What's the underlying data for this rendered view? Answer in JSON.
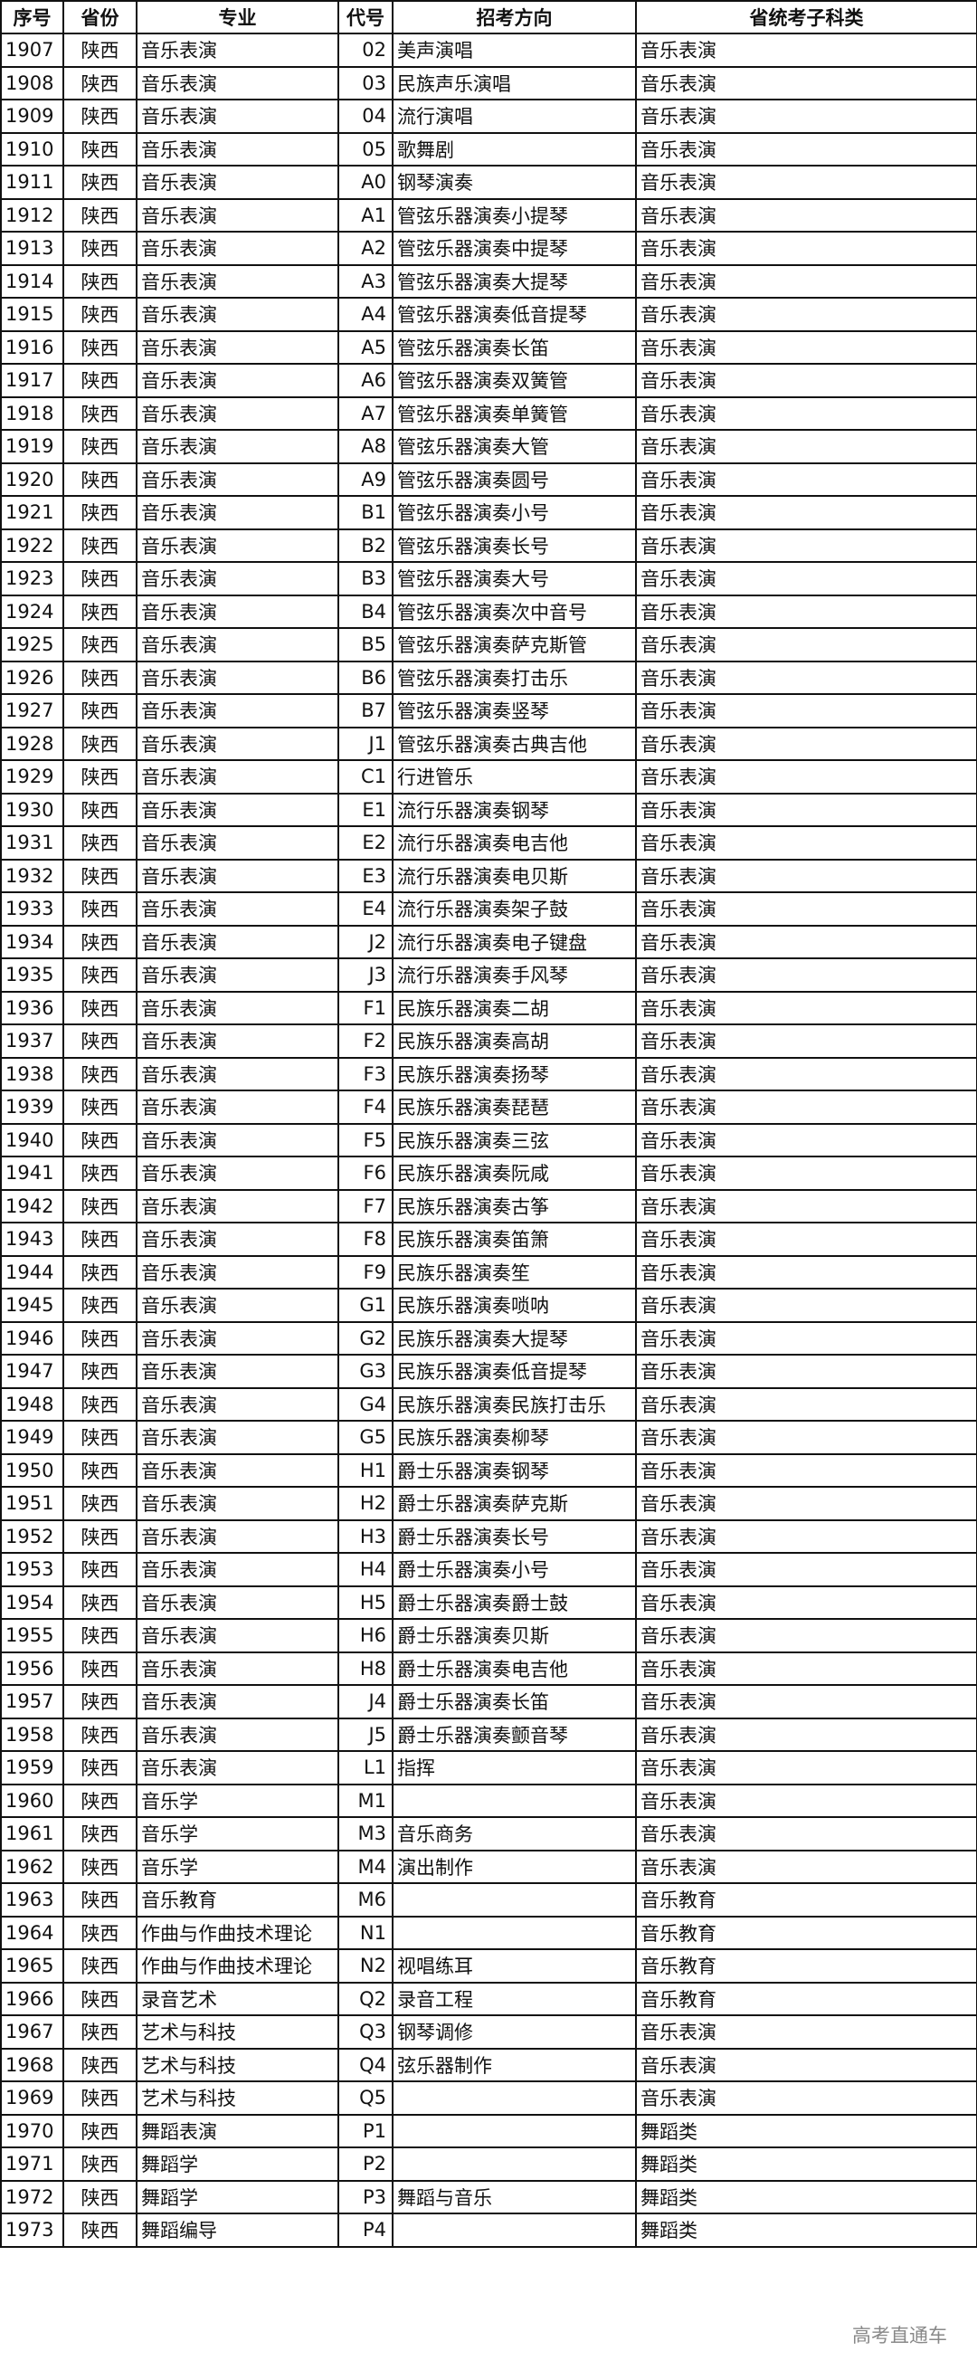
{
  "headers": [
    "序号",
    "省份",
    "专业",
    "代号",
    "招考方向",
    "省统考子科类"
  ],
  "rows": [
    [
      "1907",
      "陕西",
      "音乐表演",
      "02",
      "美声演唱",
      "音乐表演"
    ],
    [
      "1908",
      "陕西",
      "音乐表演",
      "03",
      "民族声乐演唱",
      "音乐表演"
    ],
    [
      "1909",
      "陕西",
      "音乐表演",
      "04",
      "流行演唱",
      "音乐表演"
    ],
    [
      "1910",
      "陕西",
      "音乐表演",
      "05",
      "歌舞剧",
      "音乐表演"
    ],
    [
      "1911",
      "陕西",
      "音乐表演",
      "A0",
      "钢琴演奏",
      "音乐表演"
    ],
    [
      "1912",
      "陕西",
      "音乐表演",
      "A1",
      "管弦乐器演奏小提琴",
      "音乐表演"
    ],
    [
      "1913",
      "陕西",
      "音乐表演",
      "A2",
      "管弦乐器演奏中提琴",
      "音乐表演"
    ],
    [
      "1914",
      "陕西",
      "音乐表演",
      "A3",
      "管弦乐器演奏大提琴",
      "音乐表演"
    ],
    [
      "1915",
      "陕西",
      "音乐表演",
      "A4",
      "管弦乐器演奏低音提琴",
      "音乐表演"
    ],
    [
      "1916",
      "陕西",
      "音乐表演",
      "A5",
      "管弦乐器演奏长笛",
      "音乐表演"
    ],
    [
      "1917",
      "陕西",
      "音乐表演",
      "A6",
      "管弦乐器演奏双簧管",
      "音乐表演"
    ],
    [
      "1918",
      "陕西",
      "音乐表演",
      "A7",
      "管弦乐器演奏单簧管",
      "音乐表演"
    ],
    [
      "1919",
      "陕西",
      "音乐表演",
      "A8",
      "管弦乐器演奏大管",
      "音乐表演"
    ],
    [
      "1920",
      "陕西",
      "音乐表演",
      "A9",
      "管弦乐器演奏圆号",
      "音乐表演"
    ],
    [
      "1921",
      "陕西",
      "音乐表演",
      "B1",
      "管弦乐器演奏小号",
      "音乐表演"
    ],
    [
      "1922",
      "陕西",
      "音乐表演",
      "B2",
      "管弦乐器演奏长号",
      "音乐表演"
    ],
    [
      "1923",
      "陕西",
      "音乐表演",
      "B3",
      "管弦乐器演奏大号",
      "音乐表演"
    ],
    [
      "1924",
      "陕西",
      "音乐表演",
      "B4",
      "管弦乐器演奏次中音号",
      "音乐表演"
    ],
    [
      "1925",
      "陕西",
      "音乐表演",
      "B5",
      "管弦乐器演奏萨克斯管",
      "音乐表演"
    ],
    [
      "1926",
      "陕西",
      "音乐表演",
      "B6",
      "管弦乐器演奏打击乐",
      "音乐表演"
    ],
    [
      "1927",
      "陕西",
      "音乐表演",
      "B7",
      "管弦乐器演奏竖琴",
      "音乐表演"
    ],
    [
      "1928",
      "陕西",
      "音乐表演",
      "J1",
      "管弦乐器演奏古典吉他",
      "音乐表演"
    ],
    [
      "1929",
      "陕西",
      "音乐表演",
      "C1",
      "行进管乐",
      "音乐表演"
    ],
    [
      "1930",
      "陕西",
      "音乐表演",
      "E1",
      "流行乐器演奏钢琴",
      "音乐表演"
    ],
    [
      "1931",
      "陕西",
      "音乐表演",
      "E2",
      "流行乐器演奏电吉他",
      "音乐表演"
    ],
    [
      "1932",
      "陕西",
      "音乐表演",
      "E3",
      "流行乐器演奏电贝斯",
      "音乐表演"
    ],
    [
      "1933",
      "陕西",
      "音乐表演",
      "E4",
      "流行乐器演奏架子鼓",
      "音乐表演"
    ],
    [
      "1934",
      "陕西",
      "音乐表演",
      "J2",
      "流行乐器演奏电子键盘",
      "音乐表演"
    ],
    [
      "1935",
      "陕西",
      "音乐表演",
      "J3",
      "流行乐器演奏手风琴",
      "音乐表演"
    ],
    [
      "1936",
      "陕西",
      "音乐表演",
      "F1",
      "民族乐器演奏二胡",
      "音乐表演"
    ],
    [
      "1937",
      "陕西",
      "音乐表演",
      "F2",
      "民族乐器演奏高胡",
      "音乐表演"
    ],
    [
      "1938",
      "陕西",
      "音乐表演",
      "F3",
      "民族乐器演奏扬琴",
      "音乐表演"
    ],
    [
      "1939",
      "陕西",
      "音乐表演",
      "F4",
      "民族乐器演奏琵琶",
      "音乐表演"
    ],
    [
      "1940",
      "陕西",
      "音乐表演",
      "F5",
      "民族乐器演奏三弦",
      "音乐表演"
    ],
    [
      "1941",
      "陕西",
      "音乐表演",
      "F6",
      "民族乐器演奏阮咸",
      "音乐表演"
    ],
    [
      "1942",
      "陕西",
      "音乐表演",
      "F7",
      "民族乐器演奏古筝",
      "音乐表演"
    ],
    [
      "1943",
      "陕西",
      "音乐表演",
      "F8",
      "民族乐器演奏笛箫",
      "音乐表演"
    ],
    [
      "1944",
      "陕西",
      "音乐表演",
      "F9",
      "民族乐器演奏笙",
      "音乐表演"
    ],
    [
      "1945",
      "陕西",
      "音乐表演",
      "G1",
      "民族乐器演奏唢呐",
      "音乐表演"
    ],
    [
      "1946",
      "陕西",
      "音乐表演",
      "G2",
      "民族乐器演奏大提琴",
      "音乐表演"
    ],
    [
      "1947",
      "陕西",
      "音乐表演",
      "G3",
      "民族乐器演奏低音提琴",
      "音乐表演"
    ],
    [
      "1948",
      "陕西",
      "音乐表演",
      "G4",
      "民族乐器演奏民族打击乐",
      "音乐表演"
    ],
    [
      "1949",
      "陕西",
      "音乐表演",
      "G5",
      "民族乐器演奏柳琴",
      "音乐表演"
    ],
    [
      "1950",
      "陕西",
      "音乐表演",
      "H1",
      "爵士乐器演奏钢琴",
      "音乐表演"
    ],
    [
      "1951",
      "陕西",
      "音乐表演",
      "H2",
      "爵士乐器演奏萨克斯",
      "音乐表演"
    ],
    [
      "1952",
      "陕西",
      "音乐表演",
      "H3",
      "爵士乐器演奏长号",
      "音乐表演"
    ],
    [
      "1953",
      "陕西",
      "音乐表演",
      "H4",
      "爵士乐器演奏小号",
      "音乐表演"
    ],
    [
      "1954",
      "陕西",
      "音乐表演",
      "H5",
      "爵士乐器演奏爵士鼓",
      "音乐表演"
    ],
    [
      "1955",
      "陕西",
      "音乐表演",
      "H6",
      "爵士乐器演奏贝斯",
      "音乐表演"
    ],
    [
      "1956",
      "陕西",
      "音乐表演",
      "H8",
      "爵士乐器演奏电吉他",
      "音乐表演"
    ],
    [
      "1957",
      "陕西",
      "音乐表演",
      "J4",
      "爵士乐器演奏长笛",
      "音乐表演"
    ],
    [
      "1958",
      "陕西",
      "音乐表演",
      "J5",
      "爵士乐器演奏颤音琴",
      "音乐表演"
    ],
    [
      "1959",
      "陕西",
      "音乐表演",
      "L1",
      "指挥",
      "音乐表演"
    ],
    [
      "1960",
      "陕西",
      "音乐学",
      "M1",
      "",
      "音乐表演"
    ],
    [
      "1961",
      "陕西",
      "音乐学",
      "M3",
      "音乐商务",
      "音乐表演"
    ],
    [
      "1962",
      "陕西",
      "音乐学",
      "M4",
      "演出制作",
      "音乐表演"
    ],
    [
      "1963",
      "陕西",
      "音乐教育",
      "M6",
      "",
      "音乐教育"
    ],
    [
      "1964",
      "陕西",
      "作曲与作曲技术理论",
      "N1",
      "",
      "音乐教育"
    ],
    [
      "1965",
      "陕西",
      "作曲与作曲技术理论",
      "N2",
      "视唱练耳",
      "音乐教育"
    ],
    [
      "1966",
      "陕西",
      "录音艺术",
      "Q2",
      "录音工程",
      "音乐教育"
    ],
    [
      "1967",
      "陕西",
      "艺术与科技",
      "Q3",
      "钢琴调修",
      "音乐表演"
    ],
    [
      "1968",
      "陕西",
      "艺术与科技",
      "Q4",
      "弦乐器制作",
      "音乐表演"
    ],
    [
      "1969",
      "陕西",
      "艺术与科技",
      "Q5",
      "",
      "音乐表演"
    ],
    [
      "1970",
      "陕西",
      "舞蹈表演",
      "P1",
      "",
      "舞蹈类"
    ],
    [
      "1971",
      "陕西",
      "舞蹈学",
      "P2",
      "",
      "舞蹈类"
    ],
    [
      "1972",
      "陕西",
      "舞蹈学",
      "P3",
      "舞蹈与音乐",
      "舞蹈类"
    ],
    [
      "1973",
      "陕西",
      "舞蹈编导",
      "P4",
      "",
      "舞蹈类"
    ]
  ],
  "watermark": "高考直通车"
}
